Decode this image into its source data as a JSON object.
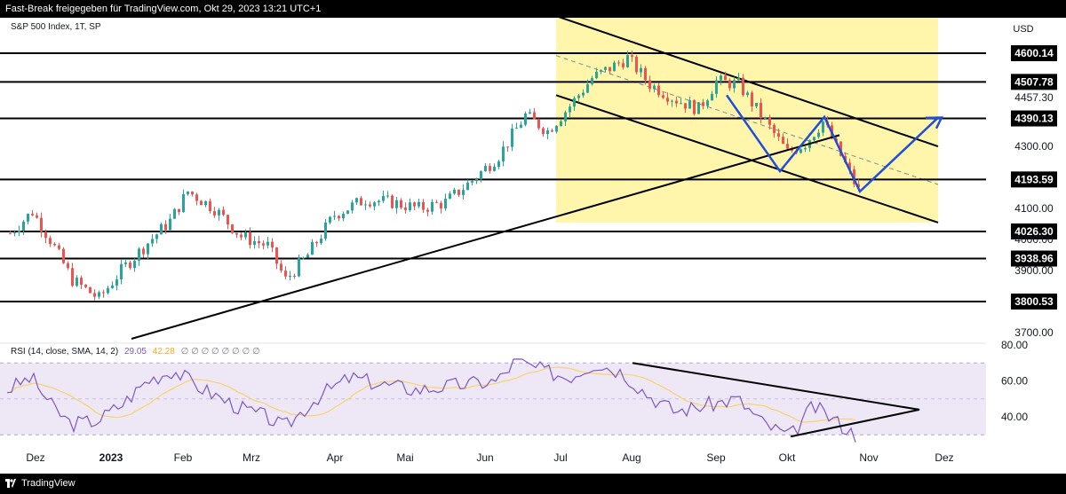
{
  "header": {
    "text": "Fast-Break freigegeben für TradingView.com, Okt 29, 2023 13:21 UTC+1"
  },
  "footer": {
    "brand": "TradingView"
  },
  "symbol": {
    "label": "S&P 500 Index, 1T, SP"
  },
  "currency": "USD",
  "rsi": {
    "label": "RSI (14, close, SMA, 14, 2)",
    "value": "29.05",
    "sma": "42.28",
    "zeros": "∅ ∅ ∅ ∅ ∅ ∅ ∅ ∅"
  },
  "colors": {
    "up": "#26a69a",
    "down": "#ef5350",
    "channel": "#fff59d",
    "rsi_line": "#7e57c2",
    "rsi_sma": "#f9d36b",
    "rsi_band": "#ede7f6",
    "projection": "#1e4fd6",
    "level_line": "#000000"
  },
  "chart_data": {
    "type": "candlestick",
    "title": "S&P 500 Index, 1T, SP",
    "y_axis_ticks": [
      3700,
      3800,
      3900,
      4000,
      4100,
      4200,
      4300,
      4400,
      4457.3,
      4500,
      4600
    ],
    "y_axis_labels": [
      "3700.00",
      "3900.00",
      "4000.00",
      "4100.00",
      "4300.00",
      "4457.30"
    ],
    "x_axis_labels": [
      "Dez",
      "2023",
      "Feb",
      "Mrz",
      "Apr",
      "Mai",
      "Jun",
      "Jul",
      "Aug",
      "Sep",
      "Okt",
      "Nov",
      "Dez"
    ],
    "horizontal_levels": [
      4600.14,
      4507.78,
      4390.13,
      4193.59,
      4026.3,
      3938.96,
      3800.53
    ],
    "price_badge": "4026.30",
    "trendline": {
      "from": [
        "2023-01-15",
        3690
      ],
      "to": [
        "2023-10-15",
        4285
      ]
    },
    "channel": {
      "upper": {
        "from": [
          "2023-07-01",
          4720
        ],
        "to": [
          "2023-12-01",
          4300
        ]
      },
      "lower": {
        "from": [
          "2023-07-01",
          4465
        ],
        "to": [
          "2023-12-01",
          4055
        ]
      }
    },
    "projection_path": [
      [
        "2023-09-10",
        4465
      ],
      [
        "2023-10-01",
        4230
      ],
      [
        "2023-10-17",
        4395
      ],
      [
        "2023-10-30",
        4155
      ],
      [
        "2023-12-01",
        4435
      ]
    ],
    "close_approx": [
      [
        "Dez",
        4000
      ],
      [
        "Dez",
        4080
      ],
      [
        "Dez",
        3990
      ],
      [
        "2023",
        3850
      ],
      [
        "2023",
        3930
      ],
      [
        "Jan-mid",
        3990
      ],
      [
        "Feb",
        4130
      ],
      [
        "Feb",
        4110
      ],
      [
        "Feb",
        4050
      ],
      [
        "Mrz",
        3960
      ],
      [
        "Mrz",
        4050
      ],
      [
        "Mrz",
        3870
      ],
      [
        "Mrz",
        3920
      ],
      [
        "Apr",
        4060
      ],
      [
        "Apr",
        4120
      ],
      [
        "Apr",
        4130
      ],
      [
        "Mai",
        4140
      ],
      [
        "Mai",
        4090
      ],
      [
        "Mai",
        4120
      ],
      [
        "Mai",
        4190
      ],
      [
        "Jun",
        4300
      ],
      [
        "Jun",
        4400
      ],
      [
        "Jun",
        4380
      ],
      [
        "Jul",
        4450
      ],
      [
        "Jul",
        4560
      ],
      [
        "Jul",
        4590
      ],
      [
        "Aug",
        4500
      ],
      [
        "Aug",
        4440
      ],
      [
        "Aug",
        4370
      ],
      [
        "Sep",
        4510
      ],
      [
        "Sep",
        4460
      ],
      [
        "Sep",
        4330
      ],
      [
        "Okt",
        4270
      ],
      [
        "Okt",
        4370
      ],
      [
        "Okt",
        4280
      ],
      [
        "Okt",
        4137
      ]
    ],
    "rsi": {
      "ylim": [
        20,
        80
      ],
      "ticks": [
        80,
        60,
        40
      ],
      "band": [
        30,
        70
      ],
      "projection_triangle": [
        [
          "2023-07-25",
          70
        ],
        [
          "2023-11-25",
          45
        ],
        [
          "2023-10-05",
          28
        ]
      ]
    }
  }
}
